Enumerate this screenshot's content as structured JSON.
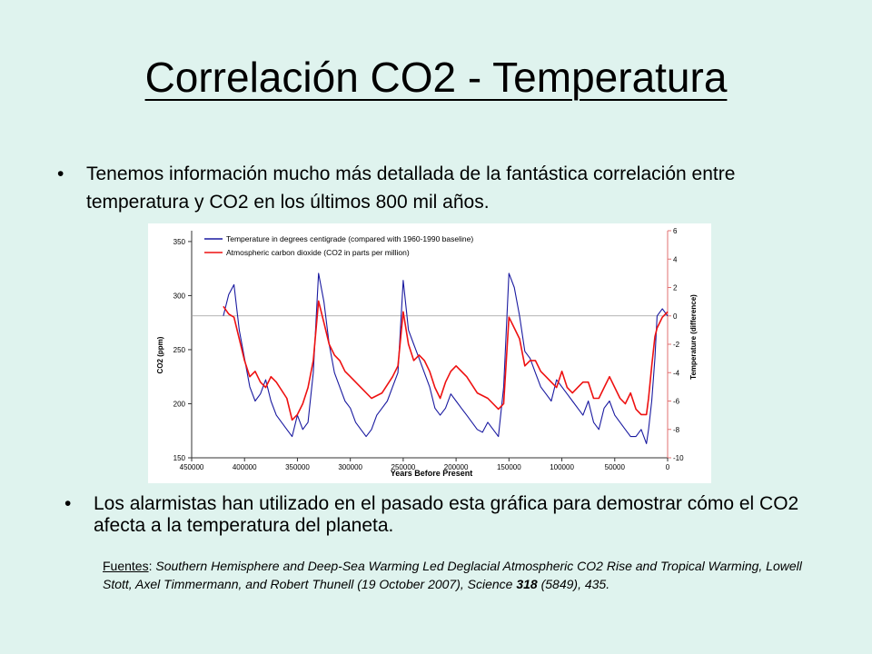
{
  "slide": {
    "title": "Correlación CO2 - Temperatura",
    "bullet1": "Tenemos información mucho más detallada de la fantástica correlación entre temperatura y CO2 en los últimos 800 mil años.",
    "bullet2": "Los alarmistas han utilizado en el pasado esta gráfica para demostrar cómo el CO2 afecta a la temperatura del planeta.",
    "bullet_symbol": "•",
    "sources": {
      "label": "Fuentes",
      "separator": ": ",
      "text_a": "Southern Hemisphere and Deep-Sea Warming Led Deglacial Atmospheric CO2 Rise and Tropical Warming, Lowell Stott, Axel Timmermann, and Robert Thunell (19 October 2007), Science ",
      "bold": "318",
      "text_b": " (5849), 435."
    }
  },
  "chart_data": {
    "type": "line",
    "xlabel": "Years Before Present",
    "ylabel": "CO2 (ppm)",
    "y2label": "Temperature (difference)",
    "xlim": [
      450000,
      0
    ],
    "ylim": [
      150,
      360
    ],
    "y2lim": [
      -10,
      6
    ],
    "x_ticks": [
      450000,
      400000,
      350000,
      300000,
      250000,
      200000,
      150000,
      100000,
      50000,
      0
    ],
    "y_ticks": [
      150,
      200,
      250,
      300,
      350
    ],
    "y2_ticks": [
      -10,
      -8,
      -6,
      -4,
      -2,
      0,
      2,
      4,
      6
    ],
    "legend_position": "top-left",
    "grid": false,
    "baseline_y2": 0,
    "colors": {
      "temperature": "#1a1aa0",
      "co2": "#ee1111",
      "baseline": "#9a9a9a",
      "y2_axis": "#e07070"
    },
    "series": [
      {
        "name": "Temperature in degrees centigrade (compared with 1960-1990 baseline)",
        "axis": "y2",
        "x": [
          420000,
          415000,
          410000,
          405000,
          400000,
          395000,
          390000,
          385000,
          380000,
          375000,
          370000,
          365000,
          360000,
          355000,
          350000,
          345000,
          340000,
          335000,
          330000,
          325000,
          320000,
          315000,
          310000,
          305000,
          300000,
          295000,
          290000,
          285000,
          280000,
          275000,
          270000,
          265000,
          260000,
          255000,
          250000,
          245000,
          240000,
          235000,
          230000,
          225000,
          220000,
          215000,
          210000,
          205000,
          200000,
          195000,
          190000,
          185000,
          180000,
          175000,
          170000,
          165000,
          160000,
          155000,
          150000,
          145000,
          140000,
          135000,
          130000,
          125000,
          120000,
          115000,
          110000,
          105000,
          100000,
          95000,
          90000,
          85000,
          80000,
          75000,
          70000,
          65000,
          60000,
          55000,
          50000,
          45000,
          40000,
          35000,
          30000,
          25000,
          20000,
          18000,
          15000,
          12000,
          10000,
          5000,
          0
        ],
        "values": [
          0,
          1.5,
          2.2,
          -1,
          -3,
          -5,
          -6,
          -5.5,
          -4.5,
          -6,
          -7,
          -7.5,
          -8,
          -8.5,
          -7,
          -8,
          -7.5,
          -4,
          3,
          1,
          -2,
          -4,
          -5,
          -6,
          -6.5,
          -7.5,
          -8,
          -8.5,
          -8,
          -7,
          -6.5,
          -6,
          -5,
          -4,
          2.5,
          -1,
          -2,
          -3,
          -4,
          -5,
          -6.5,
          -7,
          -6.5,
          -5.5,
          -6,
          -6.5,
          -7,
          -7.5,
          -8,
          -8.2,
          -7.5,
          -8,
          -8.5,
          -5,
          3,
          2,
          0,
          -2.5,
          -3,
          -4,
          -5,
          -5.5,
          -6,
          -4.5,
          -5,
          -5.5,
          -6,
          -6.5,
          -7,
          -6,
          -7.5,
          -8,
          -6.5,
          -6,
          -7,
          -7.5,
          -8,
          -8.5,
          -8.5,
          -8,
          -9,
          -8,
          -6,
          -3,
          0,
          0.5,
          0
        ]
      },
      {
        "name": "Atmospheric carbon dioxide (CO2 in parts per million)",
        "axis": "y",
        "x": [
          420000,
          415000,
          410000,
          400000,
          395000,
          390000,
          385000,
          380000,
          375000,
          370000,
          360000,
          355000,
          350000,
          345000,
          340000,
          335000,
          330000,
          325000,
          320000,
          315000,
          310000,
          305000,
          300000,
          290000,
          280000,
          270000,
          260000,
          255000,
          250000,
          245000,
          240000,
          235000,
          230000,
          225000,
          220000,
          215000,
          210000,
          205000,
          200000,
          190000,
          180000,
          170000,
          160000,
          155000,
          150000,
          145000,
          140000,
          135000,
          130000,
          125000,
          120000,
          115000,
          110000,
          105000,
          100000,
          95000,
          90000,
          85000,
          80000,
          75000,
          70000,
          65000,
          60000,
          55000,
          50000,
          45000,
          40000,
          35000,
          30000,
          25000,
          20000,
          18000,
          15000,
          12000,
          10000,
          5000,
          0
        ],
        "values": [
          290,
          283,
          280,
          240,
          225,
          230,
          220,
          215,
          225,
          220,
          205,
          185,
          190,
          200,
          215,
          240,
          295,
          275,
          255,
          245,
          240,
          230,
          225,
          215,
          205,
          210,
          225,
          235,
          285,
          255,
          240,
          245,
          240,
          230,
          215,
          205,
          220,
          230,
          235,
          225,
          210,
          205,
          195,
          200,
          280,
          270,
          260,
          235,
          240,
          240,
          230,
          225,
          220,
          215,
          230,
          215,
          210,
          215,
          220,
          220,
          205,
          205,
          215,
          225,
          215,
          205,
          200,
          210,
          195,
          190,
          190,
          205,
          235,
          262,
          270,
          280,
          285
        ]
      }
    ]
  }
}
